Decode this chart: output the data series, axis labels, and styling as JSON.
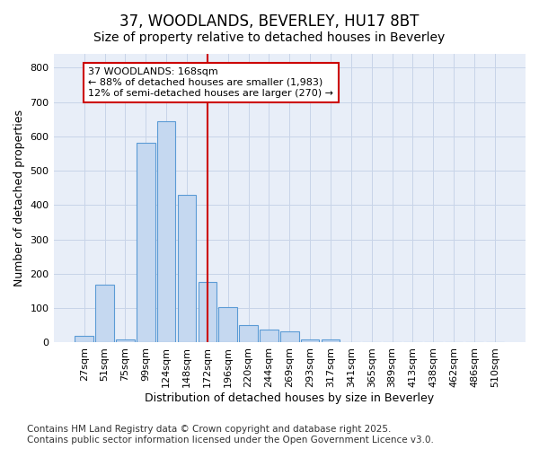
{
  "title": "37, WOODLANDS, BEVERLEY, HU17 8BT",
  "subtitle": "Size of property relative to detached houses in Beverley",
  "xlabel": "Distribution of detached houses by size in Beverley",
  "ylabel": "Number of detached properties",
  "bar_color": "#c5d8f0",
  "bar_edge_color": "#5b9bd5",
  "categories": [
    "27sqm",
    "51sqm",
    "75sqm",
    "99sqm",
    "124sqm",
    "148sqm",
    "172sqm",
    "196sqm",
    "220sqm",
    "244sqm",
    "269sqm",
    "293sqm",
    "317sqm",
    "341sqm",
    "365sqm",
    "389sqm",
    "413sqm",
    "438sqm",
    "462sqm",
    "486sqm",
    "510sqm"
  ],
  "values": [
    20,
    168,
    10,
    580,
    645,
    430,
    175,
    102,
    50,
    38,
    32,
    10,
    10,
    2,
    2,
    2,
    0,
    0,
    0,
    0,
    2
  ],
  "ylim": [
    0,
    840
  ],
  "yticks": [
    0,
    100,
    200,
    300,
    400,
    500,
    600,
    700,
    800
  ],
  "vline_index": 6,
  "vline_color": "#cc0000",
  "annotation_text": "37 WOODLANDS: 168sqm\n← 88% of detached houses are smaller (1,983)\n12% of semi-detached houses are larger (270) →",
  "box_color": "#ffffff",
  "box_edge_color": "#cc0000",
  "grid_color": "#c8d4e8",
  "background_color": "#ffffff",
  "plot_bg_color": "#e8eef8",
  "footer": "Contains HM Land Registry data © Crown copyright and database right 2025.\nContains public sector information licensed under the Open Government Licence v3.0.",
  "title_fontsize": 12,
  "subtitle_fontsize": 10,
  "label_fontsize": 9,
  "tick_fontsize": 8,
  "footer_fontsize": 7.5
}
